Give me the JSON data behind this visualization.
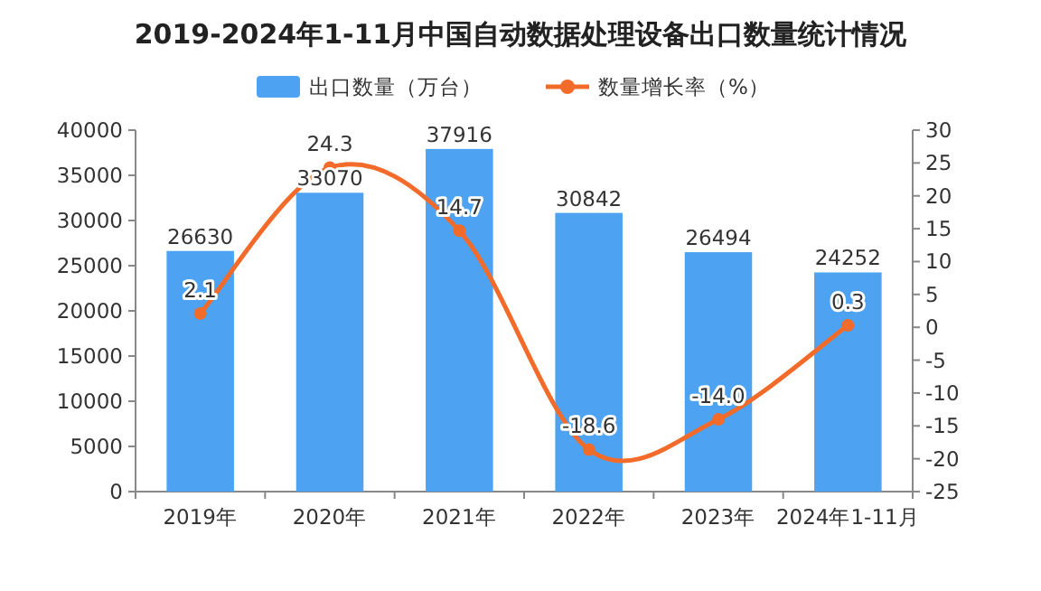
{
  "chart_data": {
    "type": "bar",
    "title": "2019-2024年1-11月中国自动数据处理设备出口数量统计情况",
    "categories": [
      "2019年",
      "2020年",
      "2021年",
      "2022年",
      "2023年",
      "2024年1-11月"
    ],
    "series": [
      {
        "name": "出口数量（万台）",
        "color": "#4da3f2",
        "values": [
          26630,
          33070,
          37916,
          30842,
          26494,
          24252
        ]
      },
      {
        "name": "数量增长率（%）",
        "type": "line",
        "axis": "y2",
        "color": "#f26b2a",
        "marker": "circle",
        "values": [
          2.1,
          24.3,
          14.7,
          -18.6,
          -14.0,
          0.3
        ],
        "value_labels": [
          "2.1",
          "24.3",
          "14.7",
          "-18.6",
          "-14.0",
          "0.3"
        ]
      }
    ],
    "ylim": [
      0,
      40000
    ],
    "yticks": [
      0,
      5000,
      10000,
      15000,
      20000,
      25000,
      30000,
      35000,
      40000
    ],
    "y2lim": [
      -25,
      30
    ],
    "y2ticks": [
      -25,
      -20,
      -15,
      -10,
      -5,
      0,
      5,
      10,
      15,
      20,
      25,
      30
    ],
    "data_labels": true,
    "legend": "top",
    "grid": false
  }
}
